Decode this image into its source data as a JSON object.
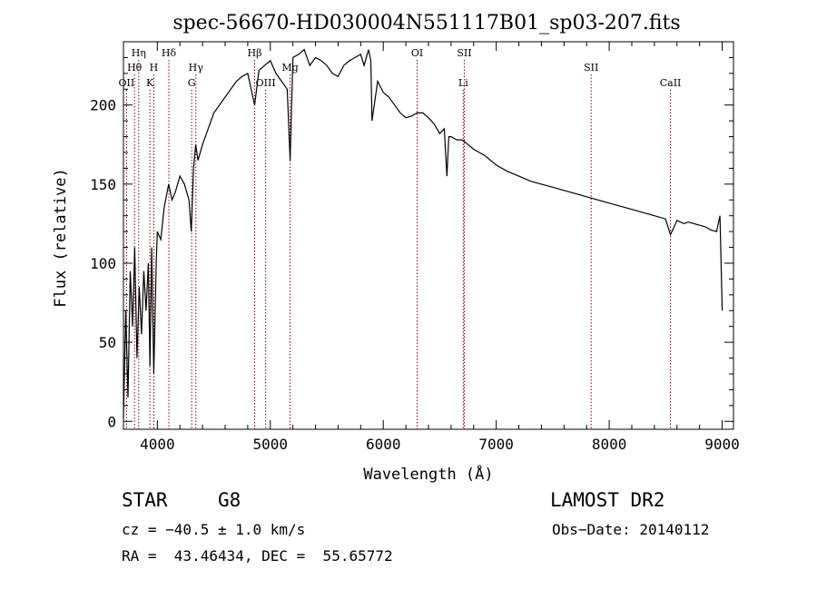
{
  "chart_data": {
    "type": "line",
    "title": "spec-56670-HD030004N551117B01_sp03-207.fits",
    "xlabel": "Wavelength (Å)",
    "ylabel": "Flux (relative)",
    "xlim": [
      3700,
      9100
    ],
    "ylim": [
      -5,
      240
    ],
    "x_ticks": [
      4000,
      5000,
      6000,
      7000,
      8000,
      9000
    ],
    "y_ticks": [
      0,
      50,
      100,
      150,
      200
    ],
    "grid": false,
    "line_color": "#000000",
    "marker_color": "#8b0000",
    "series": [
      {
        "x": [
          3700,
          3720,
          3740,
          3760,
          3780,
          3800,
          3820,
          3840,
          3860,
          3880,
          3900,
          3920,
          3935,
          3950,
          3968,
          3990,
          4000,
          4030,
          4060,
          4100,
          4130,
          4160,
          4200,
          4240,
          4280,
          4300,
          4320,
          4340,
          4360,
          4400,
          4450,
          4500,
          4550,
          4600,
          4650,
          4700,
          4750,
          4800,
          4861,
          4900,
          4950,
          5000,
          5050,
          5100,
          5150,
          5175,
          5200,
          5250,
          5300,
          5350,
          5400,
          5450,
          5500,
          5550,
          5600,
          5650,
          5700,
          5750,
          5800,
          5830,
          5870,
          5890,
          5900,
          5950,
          6000,
          6050,
          6100,
          6150,
          6200,
          6250,
          6300,
          6350,
          6400,
          6450,
          6500,
          6540,
          6563,
          6580,
          6600,
          6650,
          6700,
          6750,
          6800,
          6850,
          6900,
          7000,
          7100,
          7200,
          7300,
          7400,
          7500,
          7600,
          7700,
          7800,
          7900,
          8000,
          8100,
          8200,
          8300,
          8400,
          8498,
          8542,
          8600,
          8662,
          8700,
          8800,
          8850,
          8900,
          8950,
          8980,
          9000
        ],
        "y": [
          2,
          70,
          15,
          95,
          60,
          110,
          40,
          85,
          55,
          95,
          70,
          100,
          35,
          110,
          30,
          100,
          120,
          115,
          135,
          150,
          140,
          145,
          155,
          150,
          140,
          120,
          160,
          175,
          165,
          175,
          185,
          195,
          200,
          205,
          210,
          215,
          218,
          220,
          200,
          222,
          225,
          228,
          220,
          215,
          210,
          165,
          230,
          232,
          235,
          225,
          230,
          228,
          225,
          220,
          218,
          225,
          228,
          230,
          232,
          225,
          235,
          228,
          190,
          215,
          208,
          205,
          200,
          195,
          192,
          193,
          195,
          195,
          192,
          188,
          182,
          185,
          155,
          180,
          180,
          178,
          178,
          175,
          172,
          170,
          168,
          162,
          158,
          155,
          152,
          150,
          148,
          146,
          144,
          142,
          140,
          138,
          136,
          134,
          132,
          130,
          128,
          118,
          127,
          125,
          126,
          124,
          123,
          121,
          120,
          130,
          70
        ]
      }
    ],
    "lines": [
      {
        "label": "OII",
        "x": 3727,
        "row": 3
      },
      {
        "label": "Hθ",
        "x": 3798,
        "row": 2
      },
      {
        "label": "Hη",
        "x": 3835,
        "row": 1
      },
      {
        "label": "K",
        "x": 3934,
        "row": 3
      },
      {
        "label": "H",
        "x": 3969,
        "row": 2
      },
      {
        "label": "Hδ",
        "x": 4102,
        "row": 1
      },
      {
        "label": "G",
        "x": 4304,
        "row": 3
      },
      {
        "label": "Hγ",
        "x": 4341,
        "row": 2
      },
      {
        "label": "Hβ",
        "x": 4861,
        "row": 1
      },
      {
        "label": "OIII",
        "x": 4959,
        "row": 3
      },
      {
        "label": "Mg",
        "x": 5175,
        "row": 2
      },
      {
        "label": "OI",
        "x": 6300,
        "row": 1
      },
      {
        "label": "SII",
        "x": 6717,
        "row": 1
      },
      {
        "label": "Li",
        "x": 6708,
        "row": 3
      },
      {
        "label": "SII",
        "x": 7840,
        "row": 2
      },
      {
        "label": "CaII",
        "x": 8542,
        "row": 3
      }
    ]
  },
  "info": {
    "object_class": "STAR",
    "subclass": "G8",
    "survey": "LAMOST DR2",
    "cz_text": "cz = −40.5 ± 1.0 km/s",
    "obs_date_text": "Obs−Date: 20140112",
    "coords_text": "RA =  43.46434, DEC =  55.65772"
  }
}
